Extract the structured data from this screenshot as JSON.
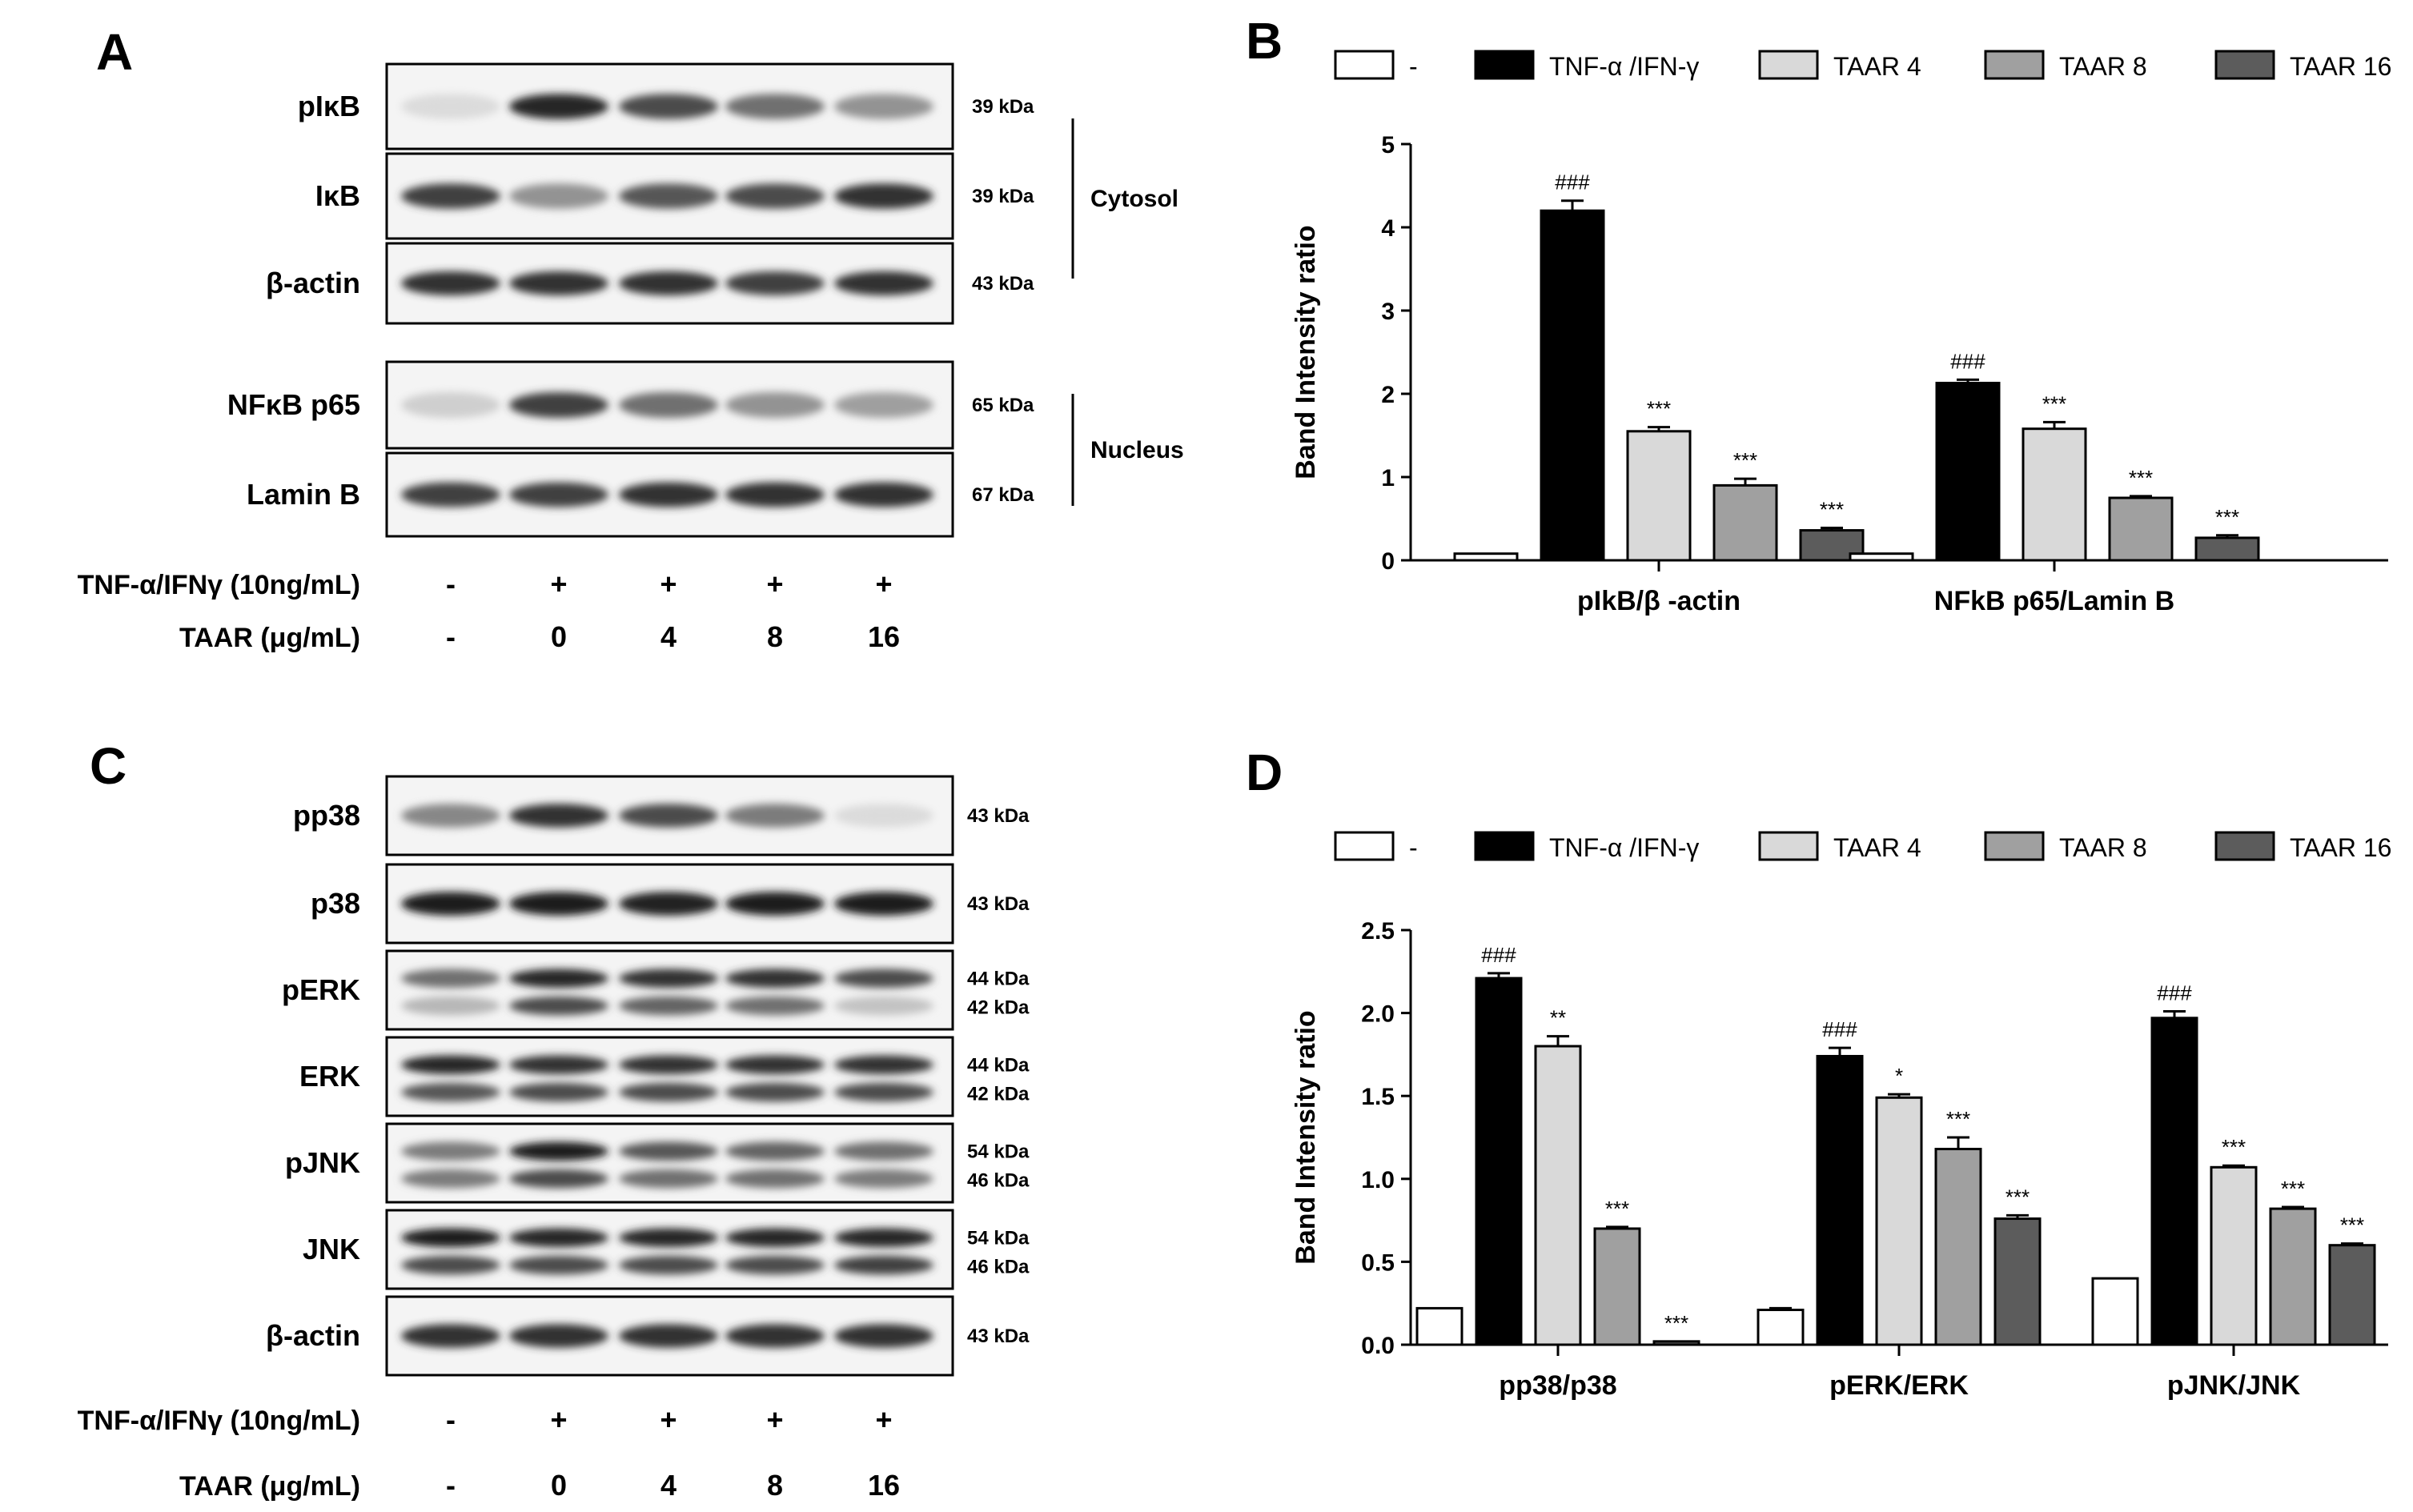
{
  "panels": {
    "A": "A",
    "B": "B",
    "C": "C",
    "D": "D"
  },
  "blot_A": {
    "rows": [
      {
        "label": "pIκB",
        "kda": [
          "39 kDa"
        ],
        "bands": [
          [
            0.15,
            0.9,
            0.75,
            0.6,
            0.45
          ]
        ]
      },
      {
        "label": "IκB",
        "kda": [
          "39 kDa"
        ],
        "bands": [
          [
            0.8,
            0.45,
            0.7,
            0.75,
            0.85
          ]
        ]
      },
      {
        "label": "β-actin",
        "kda": [
          "43 kDa"
        ],
        "bands": [
          [
            0.85,
            0.85,
            0.85,
            0.8,
            0.85
          ]
        ]
      },
      {
        "label": "NFκB p65",
        "kda": [
          "65 kDa"
        ],
        "bands": [
          [
            0.2,
            0.8,
            0.6,
            0.45,
            0.4
          ]
        ]
      },
      {
        "label": "Lamin B",
        "kda": [
          "67 kDa"
        ],
        "bands": [
          [
            0.8,
            0.8,
            0.85,
            0.85,
            0.85
          ]
        ]
      }
    ],
    "compartments": [
      "Cytosol",
      "Nucleus"
    ],
    "treatments": [
      {
        "label": "TNF-α/IFNγ (10ng/mL)",
        "values": [
          "-",
          "+",
          "+",
          "+",
          "+"
        ]
      },
      {
        "label": "TAAR (μg/mL)",
        "values": [
          "-",
          "0",
          "4",
          "8",
          "16"
        ]
      }
    ]
  },
  "blot_C": {
    "rows": [
      {
        "label": "pp38",
        "kda": [
          "43 kDa"
        ],
        "bands": [
          [
            0.5,
            0.85,
            0.75,
            0.55,
            0.15
          ]
        ]
      },
      {
        "label": "p38",
        "kda": [
          "43 kDa"
        ],
        "bands": [
          [
            0.95,
            0.95,
            0.92,
            0.95,
            0.95
          ]
        ]
      },
      {
        "label": "pERK",
        "kda": [
          "44 kDa",
          "42 kDa"
        ],
        "bands": [
          [
            0.6,
            0.9,
            0.85,
            0.85,
            0.75
          ],
          [
            0.3,
            0.75,
            0.65,
            0.6,
            0.25
          ]
        ]
      },
      {
        "label": "ERK",
        "kda": [
          "44 kDa",
          "42 kDa"
        ],
        "bands": [
          [
            0.9,
            0.85,
            0.85,
            0.85,
            0.85
          ],
          [
            0.7,
            0.75,
            0.75,
            0.75,
            0.75
          ]
        ]
      },
      {
        "label": "pJNK",
        "kda": [
          "54 kDa",
          "46 kDa"
        ],
        "bands": [
          [
            0.55,
            0.95,
            0.7,
            0.65,
            0.6
          ],
          [
            0.55,
            0.75,
            0.6,
            0.6,
            0.55
          ]
        ]
      },
      {
        "label": "JNK",
        "kda": [
          "54 kDa",
          "46 kDa"
        ],
        "bands": [
          [
            0.95,
            0.9,
            0.9,
            0.9,
            0.9
          ],
          [
            0.75,
            0.75,
            0.75,
            0.75,
            0.8
          ]
        ]
      },
      {
        "label": "β-actin",
        "kda": [
          "43 kDa"
        ],
        "bands": [
          [
            0.85,
            0.85,
            0.85,
            0.85,
            0.85
          ]
        ]
      }
    ],
    "treatments": [
      {
        "label": "TNF-α/IFNγ (10ng/mL)",
        "values": [
          "-",
          "+",
          "+",
          "+",
          "+"
        ]
      },
      {
        "label": "TAAR (μg/mL)",
        "values": [
          "-",
          "0",
          "4",
          "8",
          "16"
        ]
      }
    ]
  },
  "legend": [
    {
      "name": "-",
      "color": "#ffffff"
    },
    {
      "name": "TNF-α /IFN-γ",
      "color": "#000000"
    },
    {
      "name": "TAAR 4",
      "color": "#d9d9d9"
    },
    {
      "name": "TAAR 8",
      "color": "#a0a0a0"
    },
    {
      "name": "TAAR 16",
      "color": "#5c5c5c"
    }
  ],
  "chart_data": [
    {
      "type": "bar",
      "panel": "B",
      "ylabel": "Band Intensity ratio",
      "ylim": [
        0,
        5
      ],
      "yticks": [
        "0",
        "1",
        "2",
        "3",
        "4",
        "5"
      ],
      "categories": [
        "pIkB/β -actin",
        "NFkB p65/Lamin B"
      ],
      "series": [
        {
          "name": "-",
          "values": [
            0.08,
            0.08
          ],
          "errors": [
            0,
            0
          ],
          "labels": [
            "",
            ""
          ]
        },
        {
          "name": "TNF-α /IFN-γ",
          "values": [
            4.2,
            2.13
          ],
          "errors": [
            0.12,
            0.04
          ],
          "labels": [
            "###",
            "###"
          ]
        },
        {
          "name": "TAAR 4",
          "values": [
            1.55,
            1.58
          ],
          "errors": [
            0.05,
            0.08
          ],
          "labels": [
            "***",
            "***"
          ]
        },
        {
          "name": "TAAR 8",
          "values": [
            0.9,
            0.75
          ],
          "errors": [
            0.08,
            0.02
          ],
          "labels": [
            "***",
            "***"
          ]
        },
        {
          "name": "TAAR 16",
          "values": [
            0.36,
            0.27
          ],
          "errors": [
            0.03,
            0.03
          ],
          "labels": [
            "***",
            "***"
          ]
        }
      ]
    },
    {
      "type": "bar",
      "panel": "D",
      "ylabel": "Band Intensity ratio",
      "ylim": [
        0,
        2.5
      ],
      "yticks": [
        "0.0",
        "0.5",
        "1.0",
        "1.5",
        "2.0",
        "2.5"
      ],
      "categories": [
        "pp38/p38",
        "pERK/ERK",
        "pJNK/JNK"
      ],
      "series": [
        {
          "name": "-",
          "values": [
            0.22,
            0.21,
            0.4
          ],
          "errors": [
            0,
            0.01,
            0
          ],
          "labels": [
            "",
            "",
            ""
          ]
        },
        {
          "name": "TNF-α /IFN-γ",
          "values": [
            2.21,
            1.74,
            1.97
          ],
          "errors": [
            0.03,
            0.05,
            0.04
          ],
          "labels": [
            "###",
            "###",
            "###"
          ]
        },
        {
          "name": "TAAR 4",
          "values": [
            1.8,
            1.49,
            1.07
          ],
          "errors": [
            0.06,
            0.02,
            0.01
          ],
          "labels": [
            "**",
            "*",
            "***"
          ]
        },
        {
          "name": "TAAR 8",
          "values": [
            0.7,
            1.18,
            0.82
          ],
          "errors": [
            0.01,
            0.07,
            0.01
          ],
          "labels": [
            "***",
            "***",
            "***"
          ]
        },
        {
          "name": "TAAR 16",
          "values": [
            0.02,
            0.76,
            0.6
          ],
          "errors": [
            0,
            0.02,
            0.01
          ],
          "labels": [
            "***",
            "***",
            "***"
          ]
        }
      ]
    }
  ]
}
